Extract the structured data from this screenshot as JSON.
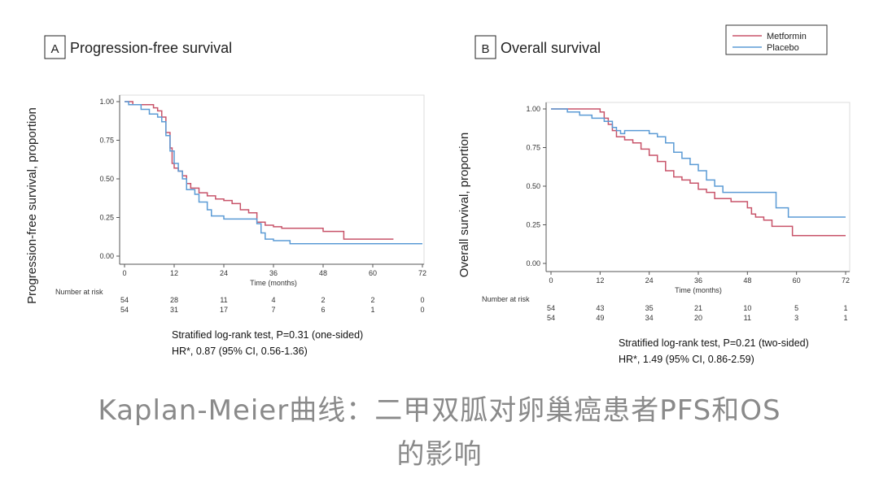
{
  "caption": {
    "line1": "Kaplan-Meier曲线：二甲双胍对卵巢癌患者PFS和OS",
    "line2": "的影响"
  },
  "legend": {
    "items": [
      {
        "label": "Metformin",
        "color": "#c8546a"
      },
      {
        "label": "Placebo",
        "color": "#5b9bd5"
      }
    ]
  },
  "chart_data": [
    {
      "type": "line",
      "panel_letter": "A",
      "title": "Progression-free survival",
      "xlabel": "Time (months)",
      "ylabel": "Progression-free survival, proportion",
      "xlim": [
        0,
        72
      ],
      "ylim": [
        0,
        1
      ],
      "x_ticks": [
        "0",
        "12",
        "24",
        "36",
        "48",
        "60",
        "72"
      ],
      "y_ticks": [
        "0.00",
        "0.25",
        "0.50",
        "0.75",
        "1.00"
      ],
      "grid": false,
      "series": [
        {
          "name": "Metformin",
          "color": "#c8546a",
          "step": [
            [
              0,
              1.0
            ],
            [
              2,
              0.98
            ],
            [
              6,
              0.98
            ],
            [
              7,
              0.96
            ],
            [
              8,
              0.94
            ],
            [
              9,
              0.9
            ],
            [
              10,
              0.8
            ],
            [
              11,
              0.7
            ],
            [
              11.5,
              0.6
            ],
            [
              12,
              0.57
            ],
            [
              13,
              0.55
            ],
            [
              14,
              0.52
            ],
            [
              15,
              0.47
            ],
            [
              16,
              0.44
            ],
            [
              18,
              0.41
            ],
            [
              20,
              0.39
            ],
            [
              22,
              0.37
            ],
            [
              24,
              0.36
            ],
            [
              26,
              0.34
            ],
            [
              28,
              0.3
            ],
            [
              30,
              0.28
            ],
            [
              32,
              0.22
            ],
            [
              34,
              0.2
            ],
            [
              36,
              0.19
            ],
            [
              38,
              0.18
            ],
            [
              48,
              0.16
            ],
            [
              53,
              0.11
            ],
            [
              65,
              0.11
            ]
          ]
        },
        {
          "name": "Placebo",
          "color": "#5b9bd5",
          "step": [
            [
              0,
              1.0
            ],
            [
              1,
              0.98
            ],
            [
              4,
              0.95
            ],
            [
              6,
              0.92
            ],
            [
              8,
              0.9
            ],
            [
              9,
              0.87
            ],
            [
              10,
              0.78
            ],
            [
              11,
              0.68
            ],
            [
              12,
              0.6
            ],
            [
              13,
              0.55
            ],
            [
              14,
              0.5
            ],
            [
              15,
              0.43
            ],
            [
              17,
              0.4
            ],
            [
              18,
              0.35
            ],
            [
              20,
              0.3
            ],
            [
              21,
              0.26
            ],
            [
              24,
              0.24
            ],
            [
              30,
              0.24
            ],
            [
              32,
              0.21
            ],
            [
              33,
              0.15
            ],
            [
              34,
              0.11
            ],
            [
              36,
              0.1
            ],
            [
              40,
              0.08
            ],
            [
              72,
              0.08
            ]
          ]
        }
      ],
      "number_at_risk": {
        "label": "Number at risk",
        "rows": [
          [
            "54",
            "28",
            "11",
            "4",
            "2",
            "2",
            "0"
          ],
          [
            "54",
            "31",
            "17",
            "7",
            "6",
            "1",
            "0"
          ]
        ]
      },
      "annotations": [
        "Stratified log-rank test, P=0.31 (one-sided)",
        "HR*, 0.87 (95% CI, 0.56-1.36)"
      ]
    },
    {
      "type": "line",
      "panel_letter": "B",
      "title": "Overall survival",
      "xlabel": "Time (months)",
      "ylabel": "Overall survival, proportion",
      "xlim": [
        0,
        72
      ],
      "ylim": [
        0,
        1
      ],
      "x_ticks": [
        "0",
        "12",
        "24",
        "36",
        "48",
        "60",
        "72"
      ],
      "y_ticks": [
        "0.00",
        "0.25",
        "0.50",
        "0.75",
        "1.00"
      ],
      "grid": false,
      "series": [
        {
          "name": "Metformin",
          "color": "#c8546a",
          "step": [
            [
              0,
              1.0
            ],
            [
              12,
              0.98
            ],
            [
              13,
              0.94
            ],
            [
              14,
              0.9
            ],
            [
              15,
              0.86
            ],
            [
              16,
              0.82
            ],
            [
              18,
              0.8
            ],
            [
              20,
              0.78
            ],
            [
              22,
              0.74
            ],
            [
              24,
              0.7
            ],
            [
              26,
              0.66
            ],
            [
              28,
              0.6
            ],
            [
              30,
              0.56
            ],
            [
              32,
              0.54
            ],
            [
              34,
              0.52
            ],
            [
              36,
              0.48
            ],
            [
              38,
              0.46
            ],
            [
              40,
              0.42
            ],
            [
              44,
              0.4
            ],
            [
              48,
              0.36
            ],
            [
              49,
              0.32
            ],
            [
              50,
              0.3
            ],
            [
              52,
              0.28
            ],
            [
              54,
              0.24
            ],
            [
              59,
              0.18
            ],
            [
              72,
              0.18
            ]
          ]
        },
        {
          "name": "Placebo",
          "color": "#5b9bd5",
          "step": [
            [
              0,
              1.0
            ],
            [
              4,
              0.98
            ],
            [
              7,
              0.96
            ],
            [
              10,
              0.94
            ],
            [
              13,
              0.92
            ],
            [
              15,
              0.88
            ],
            [
              16,
              0.86
            ],
            [
              17,
              0.84
            ],
            [
              18,
              0.86
            ],
            [
              23,
              0.86
            ],
            [
              24,
              0.84
            ],
            [
              26,
              0.82
            ],
            [
              28,
              0.78
            ],
            [
              30,
              0.72
            ],
            [
              32,
              0.68
            ],
            [
              34,
              0.64
            ],
            [
              36,
              0.6
            ],
            [
              38,
              0.54
            ],
            [
              40,
              0.5
            ],
            [
              42,
              0.46
            ],
            [
              54,
              0.46
            ],
            [
              55,
              0.36
            ],
            [
              58,
              0.3
            ],
            [
              72,
              0.3
            ]
          ]
        }
      ],
      "number_at_risk": {
        "label": "Number at risk",
        "rows": [
          [
            "54",
            "43",
            "35",
            "21",
            "10",
            "5",
            "1"
          ],
          [
            "54",
            "49",
            "34",
            "20",
            "11",
            "3",
            "1"
          ]
        ]
      },
      "annotations": [
        "Stratified log-rank test, P=0.21 (two-sided)",
        "HR*, 1.49 (95% CI, 0.86-2.59)"
      ]
    }
  ]
}
